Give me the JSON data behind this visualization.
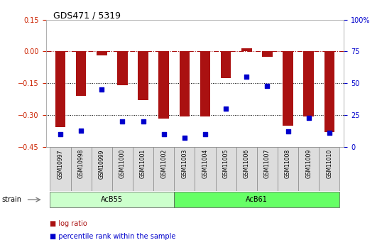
{
  "title": "GDS471 / 5319",
  "samples": [
    "GSM10997",
    "GSM10998",
    "GSM10999",
    "GSM11000",
    "GSM11001",
    "GSM11002",
    "GSM11003",
    "GSM11004",
    "GSM11005",
    "GSM11006",
    "GSM11007",
    "GSM11008",
    "GSM11009",
    "GSM11010"
  ],
  "log_ratio": [
    -0.355,
    -0.21,
    -0.02,
    -0.16,
    -0.23,
    -0.315,
    -0.305,
    -0.305,
    -0.125,
    0.015,
    -0.025,
    -0.35,
    -0.305,
    -0.38
  ],
  "percentile_rank": [
    10,
    13,
    45,
    20,
    20,
    10,
    7,
    10,
    30,
    55,
    48,
    12,
    23,
    11
  ],
  "groups": [
    {
      "label": "AcB55",
      "start": 0,
      "end": 5,
      "color": "#ccffcc"
    },
    {
      "label": "AcB61",
      "start": 6,
      "end": 13,
      "color": "#66ff66"
    }
  ],
  "bar_color": "#aa1111",
  "marker_color": "#0000cc",
  "ylim_left": [
    -0.45,
    0.15
  ],
  "ylim_right": [
    0,
    100
  ],
  "yticks_left": [
    -0.45,
    -0.3,
    -0.15,
    0,
    0.15
  ],
  "yticks_right": [
    0,
    25,
    50,
    75,
    100
  ],
  "hline_y": 0,
  "dotted_lines": [
    -0.15,
    -0.3
  ],
  "background_color": "#ffffff",
  "plot_bg": "#ffffff",
  "tick_label_color_left": "#cc2200",
  "tick_label_color_right": "#0000cc",
  "strain_label": "strain",
  "legend_items": [
    {
      "label": "log ratio",
      "color": "#aa1111"
    },
    {
      "label": "percentile rank within the sample",
      "color": "#0000cc"
    }
  ]
}
